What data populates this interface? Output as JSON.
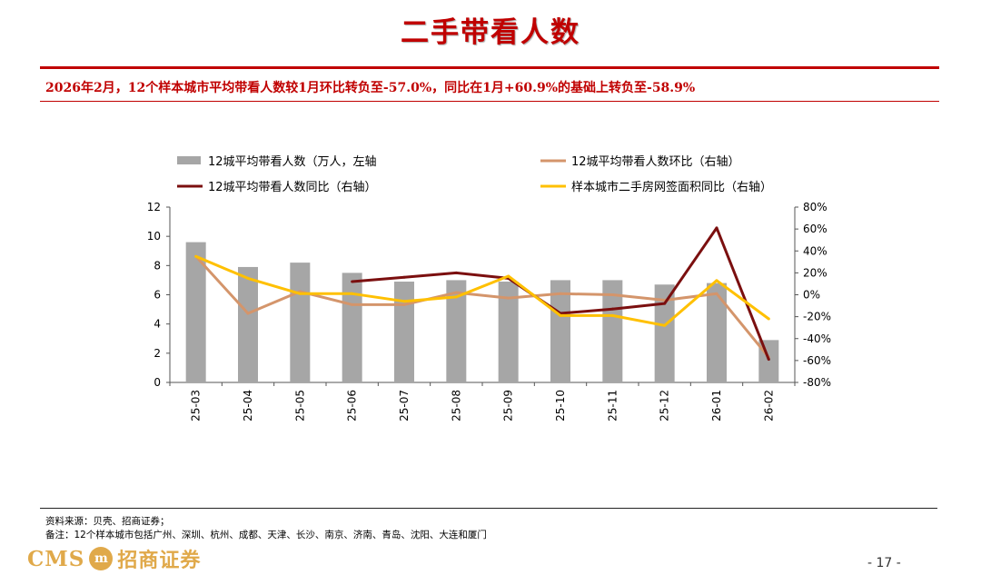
{
  "page": {
    "title": "二手带看人数",
    "subtitle": "2026年2月，12个样本城市平均带看人数较1月环比转负至-57.0%，同比在1月+60.9%的基础上转负至-58.9%",
    "source": "资料来源：贝壳、招商证券；",
    "note": "备注：12个样本城市包括广州、深圳、杭州、成都、天津、长沙、南京、济南、青岛、沈阳、大连和厦门",
    "page_number": "- 17 -",
    "logo": {
      "latin": "CMS",
      "mark": "m",
      "chinese": "招商证券"
    }
  },
  "chart_data": {
    "type": "bar+line",
    "categories": [
      "25-03",
      "25-04",
      "25-05",
      "25-06",
      "25-07",
      "25-08",
      "25-09",
      "25-10",
      "25-11",
      "25-12",
      "26-01",
      "26-02"
    ],
    "left_axis": {
      "min": 0,
      "max": 12,
      "ticks": [
        "0",
        "2",
        "4",
        "6",
        "8",
        "10",
        "12"
      ]
    },
    "right_axis": {
      "min": -80,
      "max": 80,
      "ticks": [
        "-80%",
        "-60%",
        "-40%",
        "-20%",
        "0%",
        "20%",
        "40%",
        "60%",
        "80%"
      ]
    },
    "series": [
      {
        "name": "12城平均带看人数（万人，左轴",
        "kind": "bar",
        "axis": "left",
        "color": "#a6a6a6",
        "values": [
          9.6,
          7.9,
          8.2,
          7.5,
          6.9,
          7.0,
          6.9,
          7.0,
          7.0,
          6.7,
          6.8,
          2.9
        ]
      },
      {
        "name": "12城平均带看人数环比（右轴）",
        "kind": "line",
        "axis": "right",
        "color": "#d4956b",
        "values": [
          35,
          -17,
          3,
          -9,
          -9,
          2,
          -3,
          1,
          0,
          -5,
          1,
          -57
        ]
      },
      {
        "name": "12城平均带看人数同比（右轴）",
        "kind": "line",
        "axis": "right",
        "color": "#7b0f0f",
        "values": [
          null,
          null,
          null,
          12,
          16,
          20,
          15,
          -17,
          -13,
          -8,
          61,
          -59
        ]
      },
      {
        "name": "样本城市二手房网签面积同比（右轴）",
        "kind": "line",
        "axis": "right",
        "color": "#ffc000",
        "values": [
          35,
          15,
          1,
          1,
          -6,
          -2,
          17,
          -19,
          -19,
          -28,
          13,
          -22
        ]
      }
    ]
  }
}
